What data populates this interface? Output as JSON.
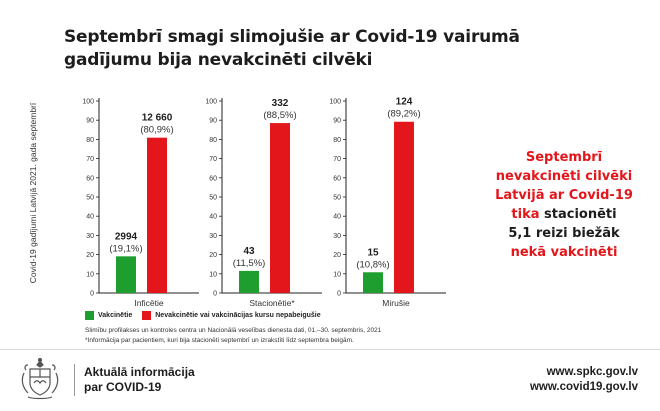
{
  "title": {
    "line1": "Septembrī smagi slimojušie ar Covid-19 vairumā",
    "line2": "gadījumu bija nevakcinēti cilvēki"
  },
  "y_axis_label": "Covid-19 gadījumi Latvijā 2021. gada septembrī",
  "chart_data": [
    {
      "type": "bar",
      "xlabel": "Inficētie",
      "ylim": [
        0,
        100
      ],
      "yticks": [
        0,
        10,
        20,
        30,
        40,
        50,
        60,
        70,
        80,
        90,
        100
      ],
      "series": [
        {
          "name": "Vakcinētie",
          "value_pct": 19.1,
          "count_label": "2994",
          "pct_label": "(19,1%)"
        },
        {
          "name": "Nevakcinētie vai vakcinācijas kursu nepabeigušie",
          "value_pct": 80.9,
          "count_label": "12 660",
          "pct_label": "(80,9%)"
        }
      ]
    },
    {
      "type": "bar",
      "xlabel": "Stacionētie*",
      "ylim": [
        0,
        100
      ],
      "yticks": [
        0,
        10,
        20,
        30,
        40,
        50,
        60,
        70,
        80,
        90,
        100
      ],
      "series": [
        {
          "name": "Vakcinētie",
          "value_pct": 11.5,
          "count_label": "43",
          "pct_label": "(11,5%)"
        },
        {
          "name": "Nevakcinētie vai vakcinācijas kursu nepabeigušie",
          "value_pct": 88.5,
          "count_label": "332",
          "pct_label": "(88,5%)"
        }
      ]
    },
    {
      "type": "bar",
      "xlabel": "Mirušie",
      "ylim": [
        0,
        100
      ],
      "yticks": [
        0,
        10,
        20,
        30,
        40,
        50,
        60,
        70,
        80,
        90,
        100
      ],
      "series": [
        {
          "name": "Vakcinētie",
          "value_pct": 10.8,
          "count_label": "15",
          "pct_label": "(10,8%)"
        },
        {
          "name": "Nevakcinētie vai vakcinācijas kursu nepabeigušie",
          "value_pct": 89.2,
          "count_label": "124",
          "pct_label": "(89,2%)"
        }
      ]
    }
  ],
  "colors": {
    "vaccinated": "#1e9e2e",
    "unvaccinated": "#e3161b",
    "axis": "#222222"
  },
  "legend": {
    "vaccinated": "Vakcinētie",
    "unvaccinated": "Nevakcinētie vai vakcinācijas kursu nepabeigušie"
  },
  "side_text": {
    "line1": "Septembrī",
    "line2": "nevakcinēti cilvēki",
    "line3": "Latvijā ar Covid-19",
    "line4_red": "tika",
    "line4_dark": "stacionēti",
    "line5": "5,1 reizi biežāk",
    "line6": "nekā vakcinēti"
  },
  "source": {
    "line1": "Slimību profilakses un kontroles centra un Nacionālā veselības dienesta dati, 01.–30. septembris, 2021",
    "line2": "*Informācija par pacientiem, kuri bija stacionēti septembrī un izrakstīti līdz septembra beigām."
  },
  "footer": {
    "title_line1": "Aktuālā informācija",
    "title_line2": "par COVID-19",
    "url1": "www.spkc.gov.lv",
    "url2": "www.covid19.gov.lv"
  },
  "icons": [
    "latvia-coat-of-arms-icon"
  ]
}
